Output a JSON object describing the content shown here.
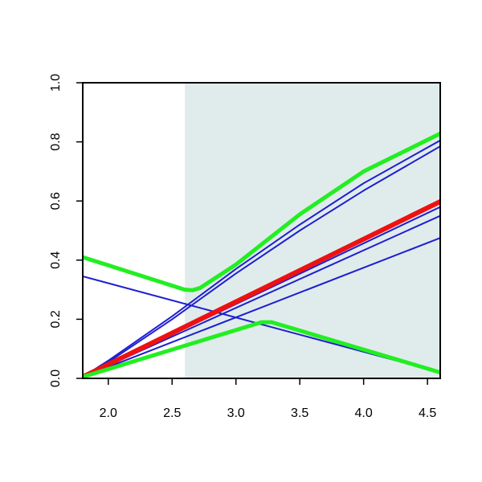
{
  "chart_data": {
    "type": "line",
    "title": "",
    "xlabel": "",
    "ylabel": "",
    "xlim": [
      1.8,
      4.6
    ],
    "ylim": [
      0.0,
      1.0
    ],
    "x_ticks": [
      "2.0",
      "2.5",
      "3.0",
      "3.5",
      "4.0",
      "4.5"
    ],
    "y_ticks": [
      "0.0",
      "0.2",
      "0.4",
      "0.6",
      "0.8",
      "1.0"
    ],
    "grid": false,
    "shaded_region": {
      "x_from": 2.6,
      "x_to": 4.6,
      "color": "#e0ecec"
    },
    "colors": {
      "blue": "#1f1fd0",
      "red": "#ee1111",
      "green": "#22ee22"
    },
    "series": [
      {
        "color": "blue",
        "width": 2,
        "x": [
          1.8,
          4.6
        ],
        "y": [
          0.345,
          0.02
        ]
      },
      {
        "color": "blue",
        "width": 2,
        "x": [
          1.8,
          2.0,
          2.5,
          3.0,
          3.5,
          4.0,
          4.6
        ],
        "y": [
          0.005,
          0.055,
          0.2,
          0.355,
          0.5,
          0.635,
          0.785
        ]
      },
      {
        "color": "blue",
        "width": 2,
        "x": [
          1.8,
          2.0,
          2.5,
          3.0,
          3.5,
          4.0,
          4.6
        ],
        "y": [
          0.005,
          0.06,
          0.21,
          0.37,
          0.52,
          0.66,
          0.805
        ]
      },
      {
        "color": "blue",
        "width": 2,
        "x": [
          1.8,
          4.6
        ],
        "y": [
          0.005,
          0.58
        ]
      },
      {
        "color": "blue",
        "width": 2,
        "x": [
          1.8,
          4.6
        ],
        "y": [
          0.005,
          0.55
        ]
      },
      {
        "color": "blue",
        "width": 2,
        "x": [
          1.8,
          4.6
        ],
        "y": [
          0.005,
          0.475
        ]
      },
      {
        "color": "red",
        "width": 6,
        "x": [
          1.8,
          4.6
        ],
        "y": [
          0.005,
          0.598
        ]
      },
      {
        "color": "green",
        "width": 5,
        "x": [
          1.8,
          2.6,
          2.66,
          2.72,
          3.0,
          3.5,
          4.0,
          4.6
        ],
        "y": [
          0.41,
          0.3,
          0.298,
          0.306,
          0.385,
          0.555,
          0.7,
          0.828
        ]
      },
      {
        "color": "green",
        "width": 5,
        "x": [
          1.8,
          3.2,
          3.28,
          4.6
        ],
        "y": [
          0.005,
          0.19,
          0.19,
          0.02
        ]
      }
    ]
  }
}
